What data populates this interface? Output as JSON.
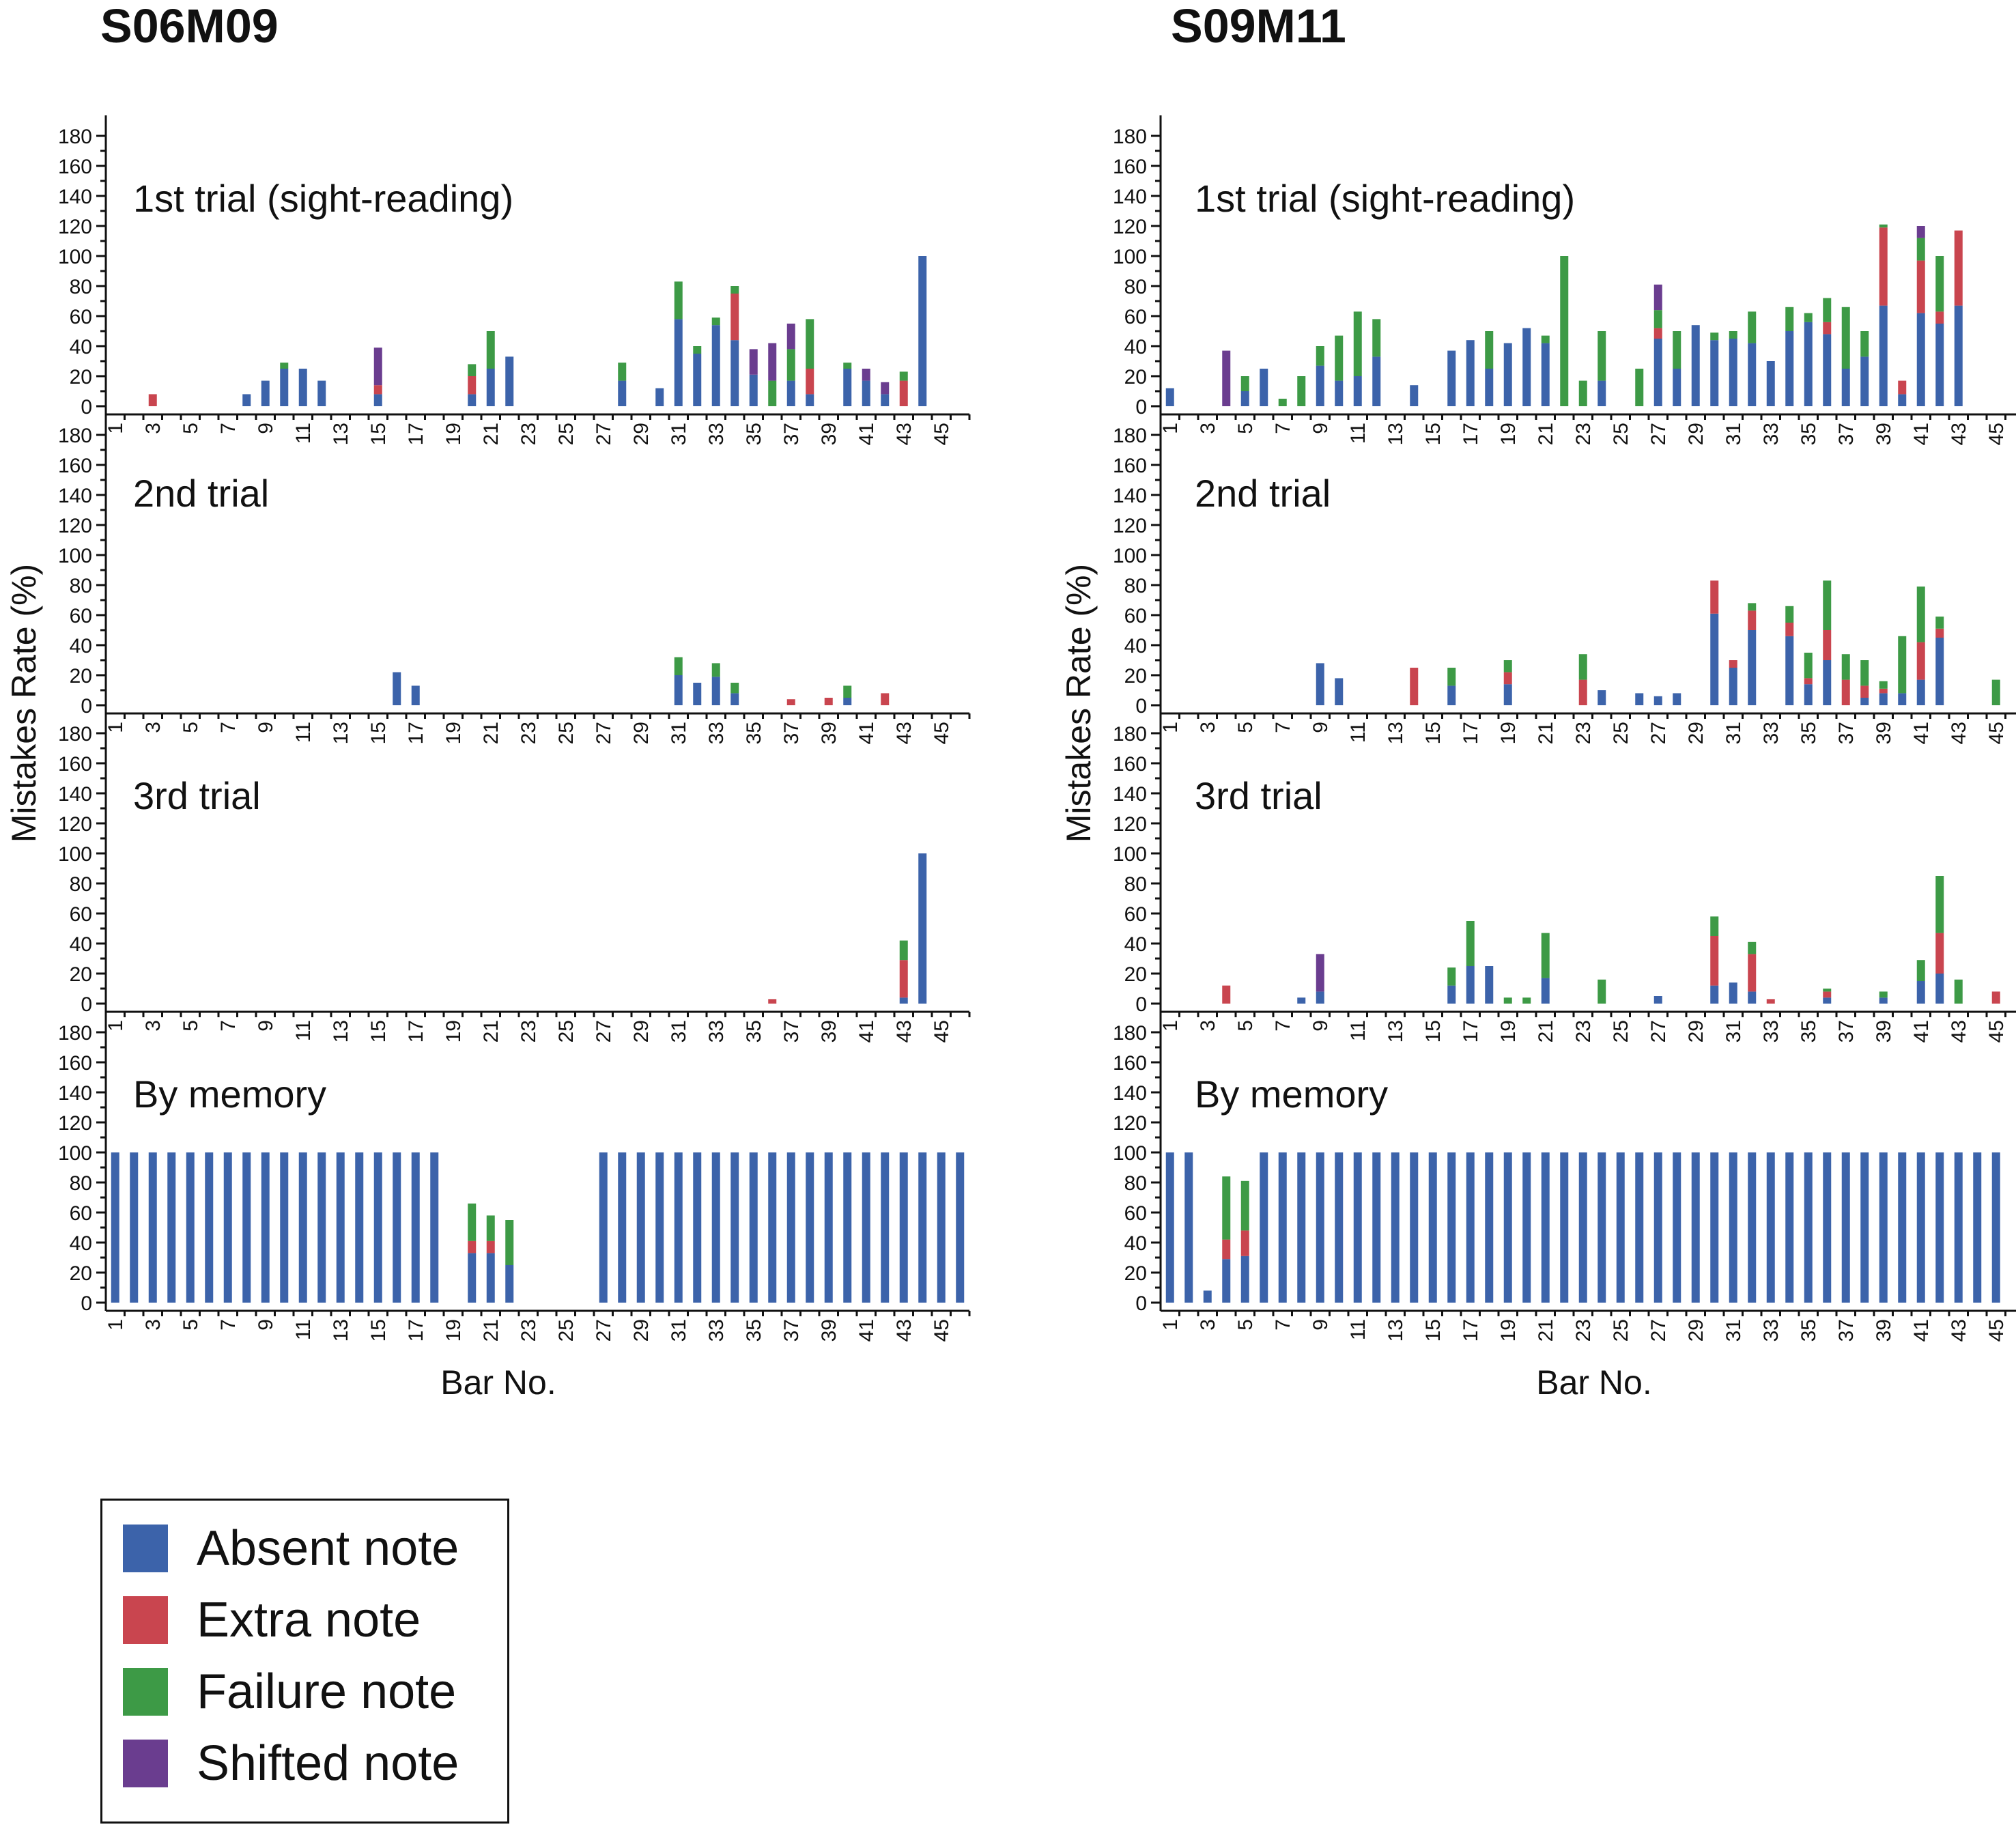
{
  "colors": {
    "absent": "#3c63aa",
    "extra": "#c9454f",
    "failure": "#3d9a46",
    "shifted": "#6a3d8f"
  },
  "legend": {
    "items": [
      {
        "key": "absent",
        "label": "Absent note"
      },
      {
        "key": "extra",
        "label": "Extra note"
      },
      {
        "key": "failure",
        "label": "Failure note"
      },
      {
        "key": "shifted",
        "label": "Shifted note"
      }
    ]
  },
  "axis": {
    "ylabel": "Mistakes Rate (%)",
    "xlabel": "Bar No.",
    "ylim": [
      0,
      180
    ],
    "yticks": [
      0,
      20,
      40,
      60,
      80,
      100,
      120,
      140,
      160,
      180
    ],
    "xticks": [
      "1",
      "3",
      "5",
      "7",
      "9",
      "11",
      "13",
      "15",
      "17",
      "19",
      "21",
      "23",
      "25",
      "27",
      "29",
      "31",
      "33",
      "35",
      "37",
      "39",
      "41",
      "43",
      "45"
    ]
  },
  "chart_data": [
    {
      "type": "bar",
      "subtype": "stacked",
      "title": "S06M09",
      "xlabel": "Bar No.",
      "ylabel": "Mistakes Rate (%)",
      "ylim": [
        0,
        180
      ],
      "stack_order": [
        "absent",
        "extra",
        "failure",
        "shifted"
      ],
      "panels": [
        {
          "label": "1st trial (sight-reading)",
          "bars": {
            "3": {
              "extra": 8
            },
            "8": {
              "absent": 8
            },
            "9": {
              "absent": 17
            },
            "10": {
              "absent": 25,
              "failure": 4
            },
            "11": {
              "absent": 25
            },
            "12": {
              "absent": 17
            },
            "15": {
              "absent": 8,
              "extra": 6,
              "shifted": 25
            },
            "20": {
              "absent": 8,
              "extra": 12,
              "failure": 8
            },
            "21": {
              "absent": 25,
              "failure": 25
            },
            "22": {
              "absent": 33
            },
            "28": {
              "absent": 17,
              "failure": 12
            },
            "30": {
              "absent": 12
            },
            "31": {
              "absent": 58,
              "failure": 25
            },
            "32": {
              "absent": 35,
              "failure": 5
            },
            "33": {
              "absent": 54,
              "failure": 5
            },
            "34": {
              "absent": 44,
              "extra": 31,
              "failure": 5
            },
            "35": {
              "absent": 21,
              "shifted": 17
            },
            "36": {
              "failure": 17,
              "shifted": 25
            },
            "37": {
              "absent": 17,
              "failure": 21,
              "shifted": 17
            },
            "38": {
              "absent": 8,
              "extra": 17,
              "failure": 33
            },
            "40": {
              "absent": 25,
              "failure": 4
            },
            "41": {
              "absent": 17,
              "shifted": 8
            },
            "42": {
              "absent": 8,
              "shifted": 8
            },
            "43": {
              "extra": 17,
              "failure": 6
            },
            "44": {
              "absent": 100
            }
          }
        },
        {
          "label": "2nd trial",
          "bars": {
            "16": {
              "absent": 22
            },
            "17": {
              "absent": 13
            },
            "31": {
              "absent": 20,
              "failure": 12
            },
            "32": {
              "absent": 15
            },
            "33": {
              "absent": 19,
              "failure": 9
            },
            "34": {
              "absent": 8,
              "failure": 7
            },
            "37": {
              "extra": 4
            },
            "39": {
              "extra": 5
            },
            "40": {
              "absent": 5,
              "failure": 8
            },
            "42": {
              "extra": 8
            }
          }
        },
        {
          "label": "3rd trial",
          "bars": {
            "36": {
              "extra": 3
            },
            "43": {
              "absent": 4,
              "extra": 25,
              "failure": 13
            },
            "44": {
              "absent": 100
            }
          }
        },
        {
          "label": "By memory",
          "bars": {
            "1": {
              "absent": 100
            },
            "2": {
              "absent": 100
            },
            "3": {
              "absent": 100
            },
            "4": {
              "absent": 100
            },
            "5": {
              "absent": 100
            },
            "6": {
              "absent": 100
            },
            "7": {
              "absent": 100
            },
            "8": {
              "absent": 100
            },
            "9": {
              "absent": 100
            },
            "10": {
              "absent": 100
            },
            "11": {
              "absent": 100
            },
            "12": {
              "absent": 100
            },
            "13": {
              "absent": 100
            },
            "14": {
              "absent": 100
            },
            "15": {
              "absent": 100
            },
            "16": {
              "absent": 100
            },
            "17": {
              "absent": 100
            },
            "18": {
              "absent": 100
            },
            "20": {
              "absent": 33,
              "extra": 8,
              "failure": 25
            },
            "21": {
              "absent": 33,
              "extra": 8,
              "failure": 17
            },
            "22": {
              "absent": 25,
              "failure": 30
            },
            "27": {
              "absent": 100
            },
            "28": {
              "absent": 100
            },
            "29": {
              "absent": 100
            },
            "30": {
              "absent": 100
            },
            "31": {
              "absent": 100
            },
            "32": {
              "absent": 100
            },
            "33": {
              "absent": 100
            },
            "34": {
              "absent": 100
            },
            "35": {
              "absent": 100
            },
            "36": {
              "absent": 100
            },
            "37": {
              "absent": 100
            },
            "38": {
              "absent": 100
            },
            "39": {
              "absent": 100
            },
            "40": {
              "absent": 100
            },
            "41": {
              "absent": 100
            },
            "42": {
              "absent": 100
            },
            "43": {
              "absent": 100
            },
            "44": {
              "absent": 100
            },
            "45": {
              "absent": 100
            },
            "46": {
              "absent": 100
            }
          }
        }
      ]
    },
    {
      "type": "bar",
      "subtype": "stacked",
      "title": "S09M11",
      "xlabel": "Bar No.",
      "ylabel": "Mistakes Rate (%)",
      "ylim": [
        0,
        180
      ],
      "stack_order": [
        "absent",
        "extra",
        "failure",
        "shifted"
      ],
      "panels": [
        {
          "label": "1st trial (sight-reading)",
          "bars": {
            "1": {
              "absent": 12
            },
            "4": {
              "shifted": 37
            },
            "5": {
              "absent": 10,
              "failure": 10
            },
            "6": {
              "absent": 25
            },
            "7": {
              "failure": 5
            },
            "8": {
              "failure": 20
            },
            "9": {
              "absent": 27,
              "failure": 13
            },
            "10": {
              "absent": 17,
              "failure": 30
            },
            "11": {
              "absent": 20,
              "failure": 43
            },
            "12": {
              "absent": 33,
              "failure": 25
            },
            "14": {
              "absent": 14
            },
            "16": {
              "absent": 37
            },
            "17": {
              "absent": 44
            },
            "18": {
              "absent": 25,
              "failure": 25
            },
            "19": {
              "absent": 42
            },
            "20": {
              "absent": 52
            },
            "21": {
              "absent": 42,
              "failure": 5
            },
            "22": {
              "failure": 100
            },
            "23": {
              "failure": 17
            },
            "24": {
              "absent": 17,
              "failure": 33
            },
            "26": {
              "failure": 25
            },
            "27": {
              "absent": 45,
              "extra": 7,
              "failure": 12,
              "shifted": 17
            },
            "28": {
              "absent": 25,
              "failure": 25
            },
            "29": {
              "absent": 54
            },
            "30": {
              "absent": 44,
              "failure": 5
            },
            "31": {
              "absent": 45,
              "failure": 5
            },
            "32": {
              "absent": 42,
              "failure": 21
            },
            "33": {
              "absent": 30
            },
            "34": {
              "absent": 50,
              "failure": 16
            },
            "35": {
              "absent": 56,
              "failure": 6
            },
            "36": {
              "absent": 48,
              "extra": 8,
              "failure": 16
            },
            "37": {
              "absent": 25,
              "failure": 41
            },
            "38": {
              "absent": 33,
              "failure": 17
            },
            "39": {
              "absent": 67,
              "extra": 52,
              "failure": 2
            },
            "40": {
              "absent": 8,
              "extra": 9
            },
            "41": {
              "absent": 62,
              "extra": 35,
              "failure": 15,
              "shifted": 8
            },
            "42": {
              "absent": 55,
              "extra": 8,
              "failure": 37
            },
            "43": {
              "absent": 67,
              "extra": 50
            }
          }
        },
        {
          "label": "2nd trial",
          "bars": {
            "9": {
              "absent": 28
            },
            "10": {
              "absent": 18
            },
            "14": {
              "extra": 25
            },
            "16": {
              "absent": 13,
              "failure": 12
            },
            "19": {
              "absent": 14,
              "extra": 8,
              "failure": 8
            },
            "23": {
              "extra": 17,
              "failure": 17
            },
            "24": {
              "absent": 10
            },
            "26": {
              "absent": 8
            },
            "27": {
              "absent": 6
            },
            "28": {
              "absent": 8
            },
            "30": {
              "absent": 61,
              "extra": 22
            },
            "31": {
              "absent": 25,
              "extra": 5
            },
            "32": {
              "absent": 50,
              "extra": 13,
              "failure": 5
            },
            "34": {
              "absent": 46,
              "extra": 9,
              "failure": 11
            },
            "35": {
              "absent": 14,
              "extra": 4,
              "failure": 17
            },
            "36": {
              "absent": 30,
              "extra": 20,
              "failure": 33
            },
            "37": {
              "extra": 17,
              "failure": 17
            },
            "38": {
              "absent": 5,
              "extra": 8,
              "failure": 17
            },
            "39": {
              "absent": 8,
              "extra": 3,
              "failure": 5
            },
            "40": {
              "absent": 8,
              "failure": 38
            },
            "41": {
              "absent": 17,
              "extra": 25,
              "failure": 37
            },
            "42": {
              "absent": 45,
              "extra": 6,
              "failure": 8
            },
            "45": {
              "failure": 17
            }
          }
        },
        {
          "label": "3rd trial",
          "bars": {
            "4": {
              "extra": 12
            },
            "8": {
              "absent": 4
            },
            "9": {
              "absent": 8,
              "shifted": 25
            },
            "16": {
              "absent": 12,
              "failure": 12
            },
            "17": {
              "absent": 25,
              "failure": 30
            },
            "18": {
              "absent": 25
            },
            "19": {
              "failure": 4
            },
            "20": {
              "failure": 4
            },
            "21": {
              "absent": 17,
              "failure": 30
            },
            "24": {
              "failure": 16
            },
            "27": {
              "absent": 5
            },
            "30": {
              "absent": 12,
              "extra": 33,
              "failure": 13
            },
            "31": {
              "absent": 14
            },
            "32": {
              "absent": 8,
              "extra": 25,
              "failure": 8
            },
            "33": {
              "extra": 3
            },
            "36": {
              "absent": 4,
              "extra": 4,
              "failure": 2
            },
            "39": {
              "absent": 4,
              "failure": 4
            },
            "41": {
              "absent": 15,
              "failure": 14
            },
            "42": {
              "absent": 20,
              "extra": 27,
              "failure": 38
            },
            "43": {
              "failure": 16
            },
            "45": {
              "extra": 8
            }
          }
        },
        {
          "label": "By memory",
          "bars": {
            "1": {
              "absent": 100
            },
            "2": {
              "absent": 100
            },
            "3": {
              "absent": 8
            },
            "4": {
              "absent": 29,
              "extra": 13,
              "failure": 42
            },
            "5": {
              "absent": 31,
              "extra": 17,
              "failure": 33
            },
            "6": {
              "absent": 100
            },
            "7": {
              "absent": 100
            },
            "8": {
              "absent": 100
            },
            "9": {
              "absent": 100
            },
            "10": {
              "absent": 100
            },
            "11": {
              "absent": 100
            },
            "12": {
              "absent": 100
            },
            "13": {
              "absent": 100
            },
            "14": {
              "absent": 100
            },
            "15": {
              "absent": 100
            },
            "16": {
              "absent": 100
            },
            "17": {
              "absent": 100
            },
            "18": {
              "absent": 100
            },
            "19": {
              "absent": 100
            },
            "20": {
              "absent": 100
            },
            "21": {
              "absent": 100
            },
            "22": {
              "absent": 100
            },
            "23": {
              "absent": 100
            },
            "24": {
              "absent": 100
            },
            "25": {
              "absent": 100
            },
            "26": {
              "absent": 100
            },
            "27": {
              "absent": 100
            },
            "28": {
              "absent": 100
            },
            "29": {
              "absent": 100
            },
            "30": {
              "absent": 100
            },
            "31": {
              "absent": 100
            },
            "32": {
              "absent": 100
            },
            "33": {
              "absent": 100
            },
            "34": {
              "absent": 100
            },
            "35": {
              "absent": 100
            },
            "36": {
              "absent": 100
            },
            "37": {
              "absent": 100
            },
            "38": {
              "absent": 100
            },
            "39": {
              "absent": 100
            },
            "40": {
              "absent": 100
            },
            "41": {
              "absent": 100
            },
            "42": {
              "absent": 100
            },
            "43": {
              "absent": 100
            },
            "44": {
              "absent": 100
            },
            "45": {
              "absent": 100
            }
          }
        }
      ]
    }
  ]
}
